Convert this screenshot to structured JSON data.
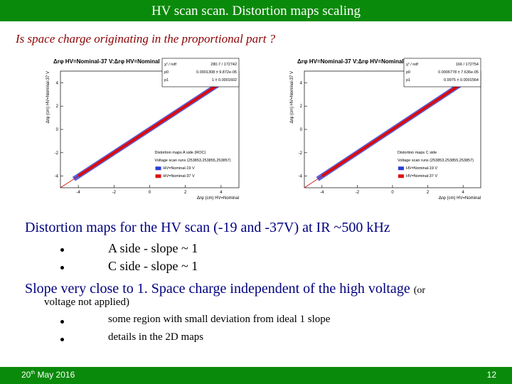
{
  "header": {
    "title": "HV scan scan. Distortion maps scaling"
  },
  "subtitle": "Is space charge originating in the proportional part ?",
  "plots": [
    {
      "title": "Δrφ HV=Nominal-37 V:Δrφ HV=Nominal",
      "stats": [
        [
          "χ² / ndf",
          "280.7 / 172742"
        ],
        [
          "p0",
          "0.0001308 ± 9.872e-05"
        ],
        [
          "p1",
          "1 ± 0.0001602"
        ]
      ],
      "legend": [
        "Distortion maps A side (ROC)",
        "Voltage scan runs (253853,253855,253857)",
        "HV=Nominal-19 V",
        "HV=Nominal-37 V"
      ],
      "x_label": "Δrφ (cm) HV=Nominal",
      "y_label": "Δrφ (cm) HV=Nominal-37 V",
      "xlim": [
        -5,
        5
      ],
      "ylim": [
        -5,
        5
      ],
      "xticks": [
        -4,
        -2,
        0,
        2,
        4
      ],
      "yticks": [
        -4,
        -2,
        0,
        2,
        4
      ]
    },
    {
      "title": "Δrφ HV=Nominal-37 V:Δrφ HV=Nominal",
      "stats": [
        [
          "χ² / ndf",
          "166 / 172754"
        ],
        [
          "p0",
          "0.0006778 ± 7.636e-05"
        ],
        [
          "p1",
          "0.9975 ± 0.0001564"
        ]
      ],
      "legend": [
        "Distortion maps C side",
        "Voltage scan runs (253853,253855,253857)",
        "HV=Nominal-19 V",
        "HV=Nominal-37 V"
      ],
      "x_label": "Δrφ (cm) HV=Nominal",
      "y_label": "Δrφ (cm) HV=Nominal-37 V",
      "xlim": [
        -5,
        5
      ],
      "ylim": [
        -5,
        5
      ],
      "xticks": [
        -4,
        -2,
        0,
        2,
        4
      ],
      "yticks": [
        -4,
        -2,
        0,
        2,
        4
      ]
    }
  ],
  "body": {
    "point1": "Distortion maps for the HV scan (-19 and -37V)  at IR ~500 kHz",
    "sub1": [
      "A side  - slope ~ 1",
      "C side  - slope ~ 1"
    ],
    "point2": "Slope very close to 1. Space charge independent of the high voltage",
    "point2_small": "(or",
    "point2_cont": "voltage not applied)",
    "sub2": [
      "some region with small deviation from ideal 1 slope",
      "details in the 2D maps"
    ]
  },
  "footer": {
    "date_day": "20",
    "date_suffix": "th",
    "date_rest": "May 2016",
    "page": "12"
  }
}
